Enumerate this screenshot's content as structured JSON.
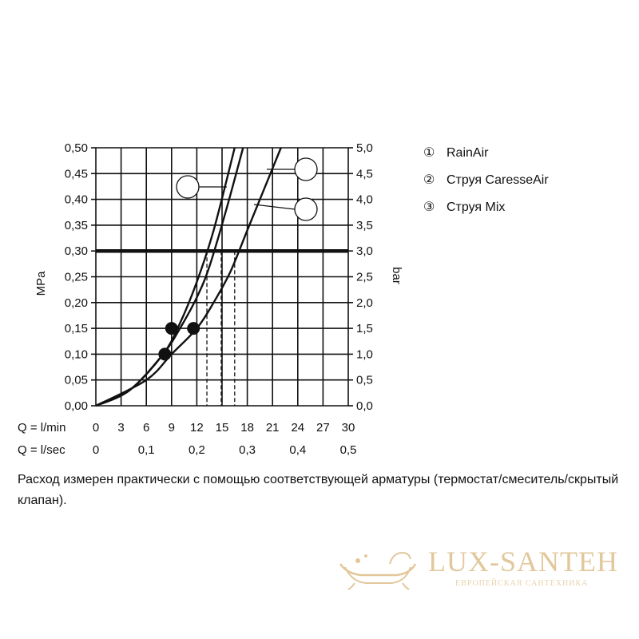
{
  "chart_data": {
    "type": "line",
    "title": "",
    "ylabel_left": "MPa",
    "ylabel_right": "bar",
    "x_primary_label": "Q = l/min",
    "x_secondary_label": "Q = l/sec",
    "xlim": [
      0,
      30
    ],
    "ylim": [
      0,
      0.5
    ],
    "x_ticks": [
      "0",
      "3",
      "6",
      "9",
      "12",
      "15",
      "18",
      "21",
      "24",
      "27",
      "30"
    ],
    "x_ticks_secondary": [
      "0",
      "0,1",
      "0,2",
      "0,3",
      "0,4",
      "0,5"
    ],
    "y_ticks_left": [
      "0,00",
      "0,05",
      "0,10",
      "0,15",
      "0,20",
      "0,25",
      "0,30",
      "0,35",
      "0,40",
      "0,45",
      "0,50"
    ],
    "y_ticks_right": [
      "0,0",
      "0,5",
      "1,0",
      "1,5",
      "2,0",
      "2,5",
      "3,0",
      "3,5",
      "4,0",
      "4,5",
      "5,0"
    ],
    "grid": true,
    "reference_line": {
      "y": 0.3
    },
    "series": [
      {
        "name": "①",
        "x": [
          0,
          4,
          8,
          10,
          12,
          14,
          16.5
        ],
        "y": [
          0,
          0.03,
          0.1,
          0.16,
          0.24,
          0.34,
          0.5
        ],
        "marker": {
          "x": 8.2,
          "y": 0.1
        },
        "drop_x": 14.9
      },
      {
        "name": "②",
        "x": [
          0,
          4,
          8,
          10,
          12,
          13.5,
          15.5,
          17.5
        ],
        "y": [
          0,
          0.03,
          0.1,
          0.15,
          0.21,
          0.27,
          0.38,
          0.5
        ],
        "marker": {
          "x": 9,
          "y": 0.15
        },
        "drop_x": 13.2
      },
      {
        "name": "③",
        "x": [
          0,
          6,
          9,
          12,
          14,
          16,
          18,
          20,
          22
        ],
        "y": [
          0,
          0.05,
          0.1,
          0.15,
          0.2,
          0.26,
          0.34,
          0.42,
          0.5
        ],
        "marker": {
          "x": 11.6,
          "y": 0.15
        },
        "drop_x": 16.5
      }
    ],
    "legend": {
      "placement": "right",
      "items": [
        {
          "marker": "①",
          "label": "RainAir"
        },
        {
          "marker": "②",
          "label": "Струя CaresseAir"
        },
        {
          "marker": "③",
          "label": "Струя Mix"
        }
      ]
    }
  },
  "footnote": "Расход измерен практически с помощью соответствующей арматуры (термостат/смеситель/скрытый клапан).",
  "watermark": {
    "brand": "LUX-SANTEH",
    "tagline": "ЕВРОПЕЙСКАЯ САНТЕХНИКА"
  },
  "colors": {
    "ink": "#111111",
    "watermark": "#e2c79b"
  }
}
